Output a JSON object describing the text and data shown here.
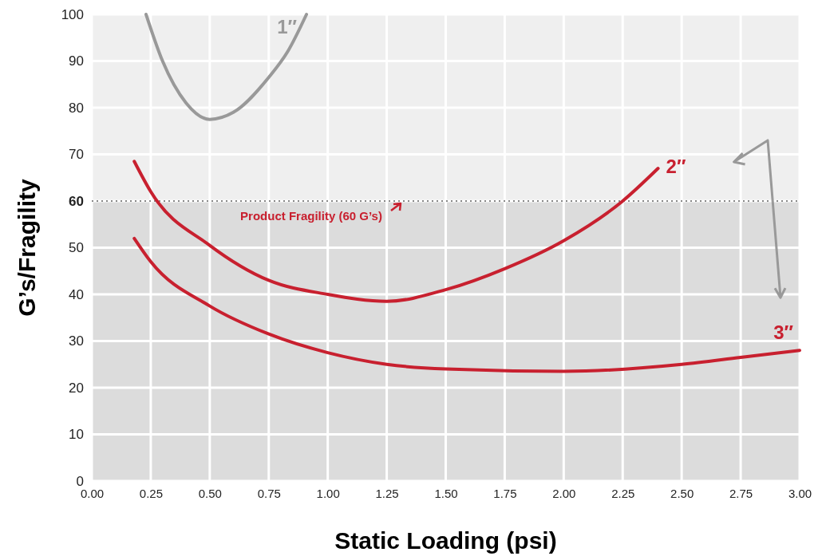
{
  "chart_data": {
    "type": "line",
    "xlabel": "Static Loading (psi)",
    "ylabel": "G’s/Fragility",
    "xlim": [
      0,
      3
    ],
    "ylim": [
      0,
      100
    ],
    "xticks": [
      {
        "value": 0,
        "label": "0.00"
      },
      {
        "value": 0.25,
        "label": "0.25"
      },
      {
        "value": 0.5,
        "label": "0.50"
      },
      {
        "value": 0.75,
        "label": "0.75"
      },
      {
        "value": 1,
        "label": "1.00"
      },
      {
        "value": 1.25,
        "label": "1.25"
      },
      {
        "value": 1.5,
        "label": "1.50"
      },
      {
        "value": 1.75,
        "label": "1.75"
      },
      {
        "value": 2,
        "label": "2.00"
      },
      {
        "value": 2.25,
        "label": "2.25"
      },
      {
        "value": 2.5,
        "label": "2.50"
      },
      {
        "value": 2.75,
        "label": "2.75"
      },
      {
        "value": 3,
        "label": "3.00"
      }
    ],
    "yticks": [
      0,
      10,
      20,
      30,
      40,
      50,
      60,
      70,
      80,
      90,
      100
    ],
    "grid": true,
    "series": [
      {
        "name": "1″",
        "color": "#999999",
        "x": [
          0.23,
          0.3,
          0.4,
          0.5,
          0.6,
          0.75,
          0.83,
          0.91
        ],
        "values": [
          100,
          90,
          81,
          77.5,
          79,
          86.5,
          92,
          100
        ]
      },
      {
        "name": "2″",
        "color": "#c8202f",
        "x": [
          0.18,
          0.25,
          0.5,
          0.75,
          1,
          1.25,
          1.5,
          1.75,
          2,
          2.25,
          2.4
        ],
        "values": [
          68.5,
          62,
          50.5,
          43,
          40,
          38.5,
          41,
          45.5,
          51.5,
          60,
          67
        ]
      },
      {
        "name": "3″",
        "color": "#c8202f",
        "x": [
          0.18,
          0.25,
          0.5,
          0.75,
          1,
          1.25,
          1.5,
          2,
          2.5,
          2.75,
          3
        ],
        "values": [
          52,
          47,
          37.5,
          31.5,
          27.5,
          25,
          24,
          23.5,
          25,
          26.5,
          28
        ]
      }
    ],
    "bands": [
      {
        "axis": "y",
        "from": 0,
        "to": 60,
        "color": "#dcdcdc"
      }
    ],
    "ref_lines": [
      {
        "axis": "y",
        "value": 60,
        "label": "Product Fragility (60 G’s)",
        "color": "#888888",
        "line_style": "dotted"
      }
    ]
  }
}
